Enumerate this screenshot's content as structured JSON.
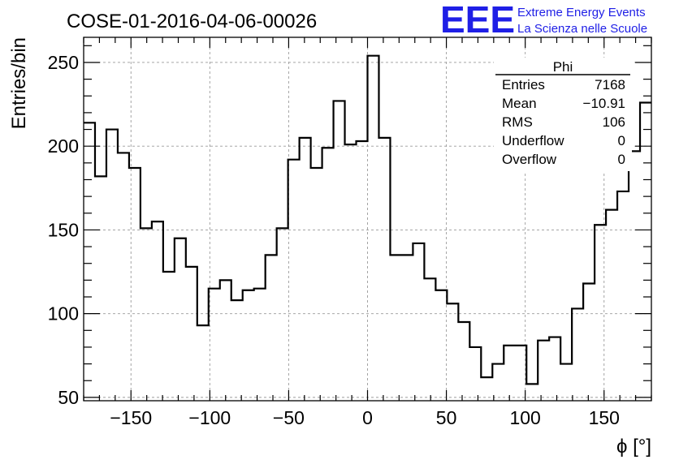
{
  "chart_data": {
    "type": "histogram",
    "title": "COSE-01-2016-04-06-00026",
    "xlabel": "ϕ [°]",
    "ylabel": "Entries/bin",
    "xlim": [
      -180,
      180
    ],
    "ylim": [
      48,
      265
    ],
    "grid": true,
    "bin_width": 7.2,
    "x_ticks": [
      {
        "value": -150,
        "label": "−150"
      },
      {
        "value": -100,
        "label": "−100"
      },
      {
        "value": -50,
        "label": "−50"
      },
      {
        "value": 0,
        "label": "0"
      },
      {
        "value": 50,
        "label": "50"
      },
      {
        "value": 100,
        "label": "100"
      },
      {
        "value": 150,
        "label": "150"
      }
    ],
    "y_ticks": [
      {
        "value": 50,
        "label": "50"
      },
      {
        "value": 100,
        "label": "100"
      },
      {
        "value": 150,
        "label": "150"
      },
      {
        "value": 200,
        "label": "200"
      },
      {
        "value": 250,
        "label": "250"
      }
    ],
    "values": [
      214,
      182,
      210,
      196,
      187,
      151,
      155,
      125,
      145,
      128,
      93,
      115,
      120,
      108,
      114,
      115,
      135,
      151,
      192,
      205,
      187,
      199,
      227,
      201,
      203,
      254,
      205,
      135,
      135,
      142,
      121,
      114,
      106,
      95,
      80,
      62,
      70,
      81,
      81,
      58,
      84,
      86,
      70,
      103,
      118,
      153,
      162,
      173,
      197,
      226
    ],
    "line_color": "#000000"
  },
  "stats_box": {
    "title": "Phi",
    "rows": [
      {
        "label": "Entries",
        "value": "7168"
      },
      {
        "label": "Mean",
        "value": "−10.91"
      },
      {
        "label": "RMS",
        "value": "106"
      },
      {
        "label": "Underflow",
        "value": "0"
      },
      {
        "label": "Overflow",
        "value": "0"
      }
    ]
  },
  "logo": {
    "letters": "EEE",
    "line1": "Extreme Energy Events",
    "line2": "La Scienza nelle Scuole",
    "color": "#1f1fe6"
  }
}
